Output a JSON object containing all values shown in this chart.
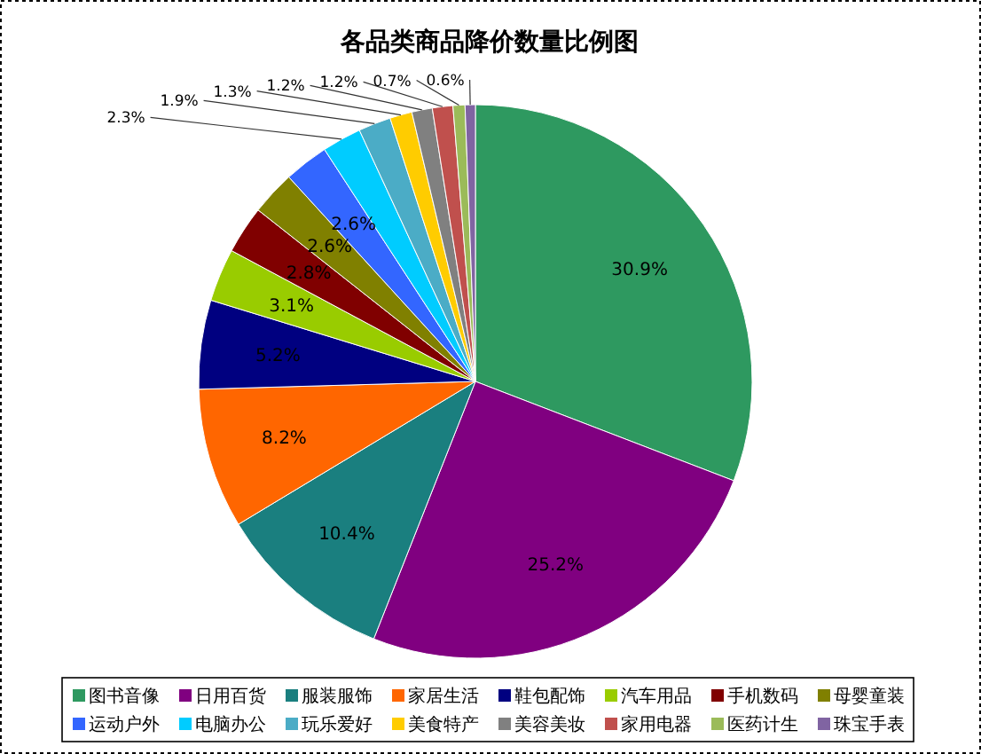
{
  "chart_data": {
    "type": "pie",
    "title": "各品类商品降价数量比例图",
    "categories": [
      "图书音像",
      "日用百货",
      "服装服饰",
      "家居生活",
      "鞋包配饰",
      "汽车用品",
      "手机数码",
      "母婴童装",
      "运动户外",
      "电脑办公",
      "玩乐爱好",
      "美食特产",
      "美容美妆",
      "家用电器",
      "医药计生",
      "珠宝手表"
    ],
    "values": [
      30.9,
      25.2,
      10.4,
      8.2,
      5.2,
      3.1,
      2.8,
      2.6,
      2.6,
      2.3,
      1.9,
      1.3,
      1.2,
      1.2,
      0.7,
      0.6
    ],
    "value_labels": [
      "30.9%",
      "25.2%",
      "10.4%",
      "8.2%",
      "5.2%",
      "3.1%",
      "2.8%",
      "2.6%",
      "2.6%",
      "2.3%",
      "1.9%",
      "1.3%",
      "1.2%",
      "1.2%",
      "0.7%",
      "0.6%"
    ],
    "colors": [
      "#2e9960",
      "#800080",
      "#1a7f7f",
      "#ff6600",
      "#000080",
      "#99cc00",
      "#800000",
      "#808000",
      "#3366ff",
      "#00ccff",
      "#4bacc6",
      "#ffcc00",
      "#808080",
      "#c0504d",
      "#9bbb59",
      "#8064a2"
    ],
    "legend": "bottom"
  }
}
